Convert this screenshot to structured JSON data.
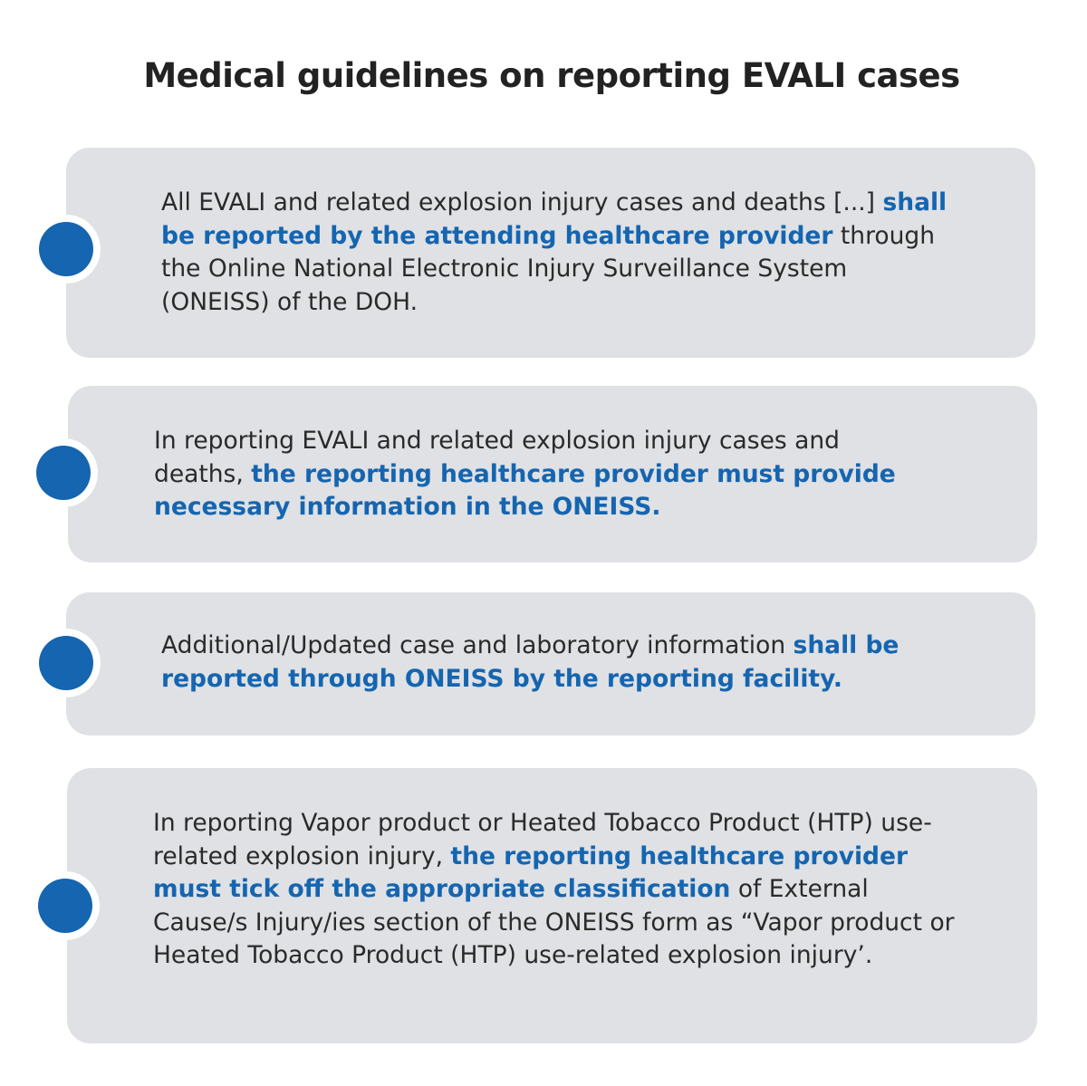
{
  "title": "Medical guidelines on reporting EVALI cases",
  "accent_color": "#1565b0",
  "card_color": "#dfe1e4",
  "items": [
    {
      "pre": "All EVALI and related explosion injury cases and deaths [...] ",
      "highlight": "shall be reported by the attending healthcare provider",
      "post": " through the Online National Electronic Injury Surveillance System (ONEISS) of the DOH."
    },
    {
      "pre": "In reporting EVALI and related explosion injury cases and deaths, ",
      "highlight": "the reporting healthcare provider must provide necessary information in the ONEISS.",
      "post": ""
    },
    {
      "pre": "Additional/Updated case and laboratory information ",
      "highlight": "shall be reported through ONEISS by the reporting facility.",
      "post": ""
    },
    {
      "pre": "In reporting Vapor product or Heated Tobacco Product (HTP) use-related explosion injury, ",
      "highlight": "the reporting healthcare provider must tick off the appropriate classification",
      "post": " of External Cause/s Injury/ies section of the ONEISS form as “Vapor product or Heated Tobacco Product (HTP) use-related explosion injury’."
    }
  ]
}
